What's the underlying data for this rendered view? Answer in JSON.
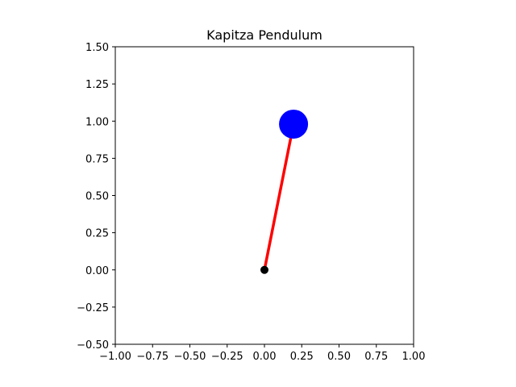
{
  "chart_data": {
    "type": "scatter",
    "title": "Kapitza Pendulum",
    "xlabel": "",
    "ylabel": "",
    "xlim": [
      -1.0,
      1.0
    ],
    "ylim": [
      -0.5,
      1.5
    ],
    "xticks": [
      "−1.00",
      "−0.75",
      "−0.50",
      "−0.25",
      "0.00",
      "0.25",
      "0.50",
      "0.75",
      "1.00"
    ],
    "xtick_values": [
      -1.0,
      -0.75,
      -0.5,
      -0.25,
      0.0,
      0.25,
      0.5,
      0.75,
      1.0
    ],
    "yticks": [
      "−0.50",
      "−0.25",
      "0.00",
      "0.25",
      "0.50",
      "0.75",
      "1.00",
      "1.25",
      "1.50"
    ],
    "ytick_values": [
      -0.5,
      -0.25,
      0.0,
      0.25,
      0.5,
      0.75,
      1.0,
      1.25,
      1.5
    ],
    "grid": false,
    "pivot": {
      "x": 0.0,
      "y": 0.0,
      "color": "#000000"
    },
    "rod": {
      "x": [
        0.0,
        0.195
      ],
      "y": [
        0.0,
        0.98
      ],
      "color": "#ff0000"
    },
    "bob": {
      "x": 0.195,
      "y": 0.98,
      "color": "#0000ff"
    }
  }
}
